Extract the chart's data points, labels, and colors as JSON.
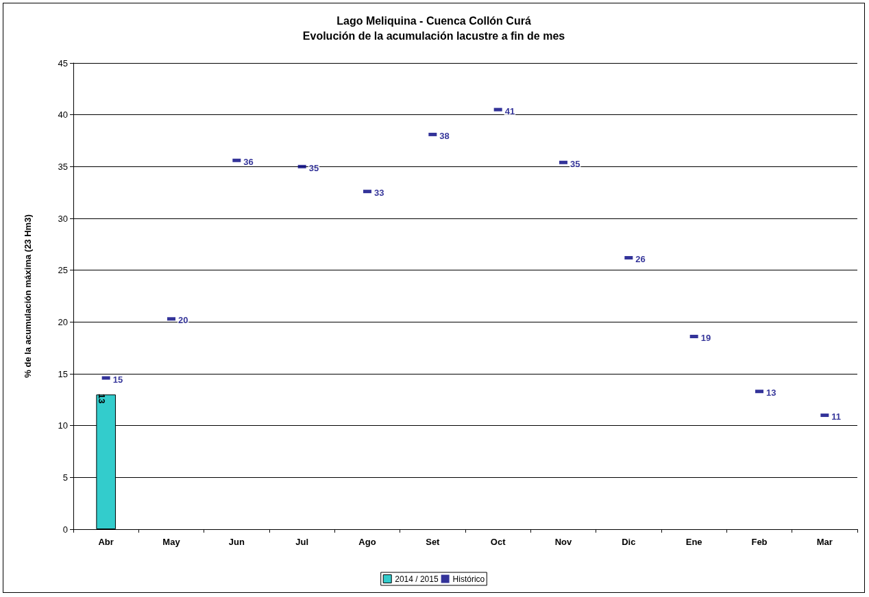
{
  "chart_data": {
    "type": "bar",
    "title": "Lago Meliquina - Cuenca Collón Curá",
    "subtitle": "Evolución de la acumulación lacustre a fin de mes",
    "ylabel": "% de la acumulación máxima (23 Hm3)",
    "categories": [
      "Abr",
      "May",
      "Jun",
      "Jul",
      "Ago",
      "Set",
      "Oct",
      "Nov",
      "Dic",
      "Ene",
      "Feb",
      "Mar"
    ],
    "series": [
      {
        "name": "2014 / 2015",
        "color": "#33cccc",
        "values": [
          13,
          null,
          null,
          null,
          null,
          null,
          null,
          null,
          null,
          null,
          null,
          null
        ],
        "value_labels": [
          "13",
          null,
          null,
          null,
          null,
          null,
          null,
          null,
          null,
          null,
          null,
          null
        ]
      },
      {
        "name": "Histórico",
        "type": "scatter",
        "color": "#000080",
        "values": [
          14.6,
          20.3,
          35.6,
          35.0,
          32.6,
          38.1,
          40.5,
          35.4,
          26.2,
          18.6,
          13.3,
          11.0
        ],
        "value_labels": [
          "15",
          "20",
          "36",
          "35",
          "33",
          "38",
          "41",
          "35",
          "26",
          "19",
          "13",
          "11"
        ]
      }
    ],
    "ylim": [
      0,
      45
    ],
    "yticks": [
      0,
      5,
      10,
      15,
      20,
      25,
      30,
      35,
      40,
      45
    ],
    "grid": "y",
    "legend": "bottom"
  }
}
